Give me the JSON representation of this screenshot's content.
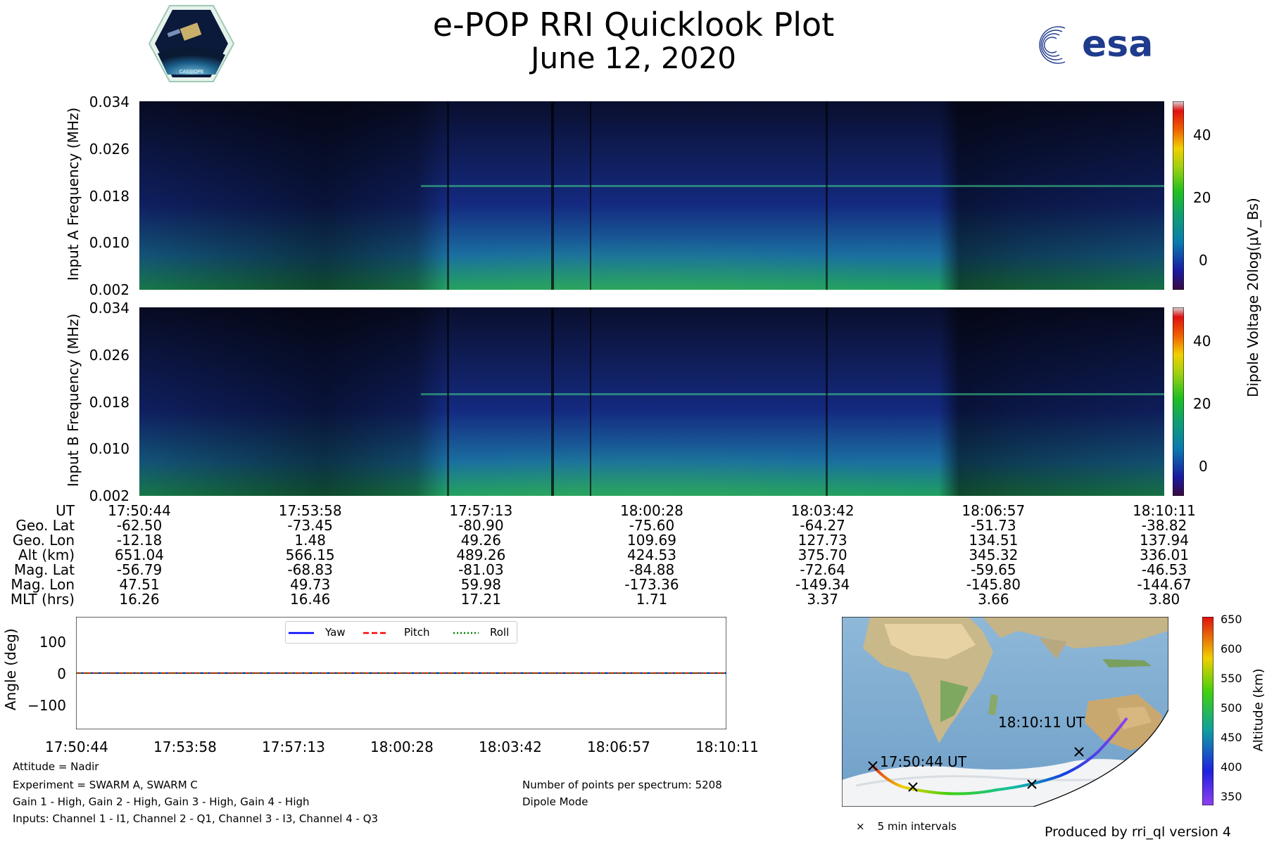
{
  "header": {
    "title": "e-POP RRI Quicklook Plot",
    "date": "June 12, 2020",
    "logo_left_text": "CASSIOPE",
    "logo_right_text": "esa"
  },
  "chart_data": [
    {
      "type": "heatmap",
      "name": "Input A spectrogram",
      "ylabel": "Input A Frequency (MHz)",
      "yticks": [
        "0.002",
        "0.010",
        "0.018",
        "0.026",
        "0.034"
      ],
      "ylim": [
        0.002,
        0.034
      ]
    },
    {
      "type": "heatmap",
      "name": "Input B spectrogram",
      "ylabel": "Input B Frequency (MHz)",
      "yticks": [
        "0.002",
        "0.010",
        "0.018",
        "0.026",
        "0.034"
      ],
      "ylim": [
        0.002,
        0.034
      ]
    },
    {
      "type": "line",
      "name": "Attitude",
      "ylabel": "Angle (deg)",
      "yticks": [
        "100",
        "0",
        "−100"
      ],
      "ylim": [
        -180,
        180
      ],
      "xticks": [
        "17:50:44",
        "17:53:58",
        "17:57:13",
        "18:00:28",
        "18:03:42",
        "18:06:57",
        "18:10:11"
      ],
      "series": [
        {
          "name": "Yaw",
          "color": "#0000ff",
          "style": "solid",
          "values": [
            0,
            0,
            0,
            0,
            0,
            0,
            0
          ]
        },
        {
          "name": "Pitch",
          "color": "#ff0000",
          "style": "dashed",
          "values": [
            0,
            0,
            0,
            0,
            0,
            0,
            0
          ]
        },
        {
          "name": "Roll",
          "color": "#008000",
          "style": "dotted",
          "values": [
            0,
            0,
            0,
            0,
            0,
            0,
            0
          ]
        }
      ]
    }
  ],
  "colorbar": {
    "label": "Dipole Voltage 20log(μV_Bs)",
    "ticks": [
      "40",
      "20",
      "0"
    ],
    "range": [
      -10,
      50
    ]
  },
  "ephemeris": {
    "labels": [
      "UT",
      "Geo. Lat",
      "Geo. Lon",
      "Alt (km)",
      "Mag. Lat",
      "Mag. Lon",
      "MLT (hrs)"
    ],
    "columns": [
      [
        "17:50:44",
        "-62.50",
        "-12.18",
        "651.04",
        "-56.79",
        "47.51",
        "16.26"
      ],
      [
        "17:53:58",
        "-73.45",
        "1.48",
        "566.15",
        "-68.83",
        "49.73",
        "16.46"
      ],
      [
        "17:57:13",
        "-80.90",
        "49.26",
        "489.26",
        "-81.03",
        "59.98",
        "17.21"
      ],
      [
        "18:00:28",
        "-75.60",
        "109.69",
        "424.53",
        "-84.88",
        "-173.36",
        "1.71"
      ],
      [
        "18:03:42",
        "-64.27",
        "127.73",
        "375.70",
        "-72.64",
        "-149.34",
        "3.37"
      ],
      [
        "18:06:57",
        "-51.73",
        "134.51",
        "345.32",
        "-59.65",
        "-145.80",
        "3.66"
      ],
      [
        "18:10:11",
        "-38.82",
        "137.94",
        "336.01",
        "-46.53",
        "-144.67",
        "3.80"
      ]
    ]
  },
  "info_left": [
    "Attitude = Nadir",
    "Experiment = SWARM A, SWARM C",
    "Gain 1 - High, Gain 2 - High, Gain 3 - High, Gain 4 - High",
    "Inputs: Channel 1 - I1, Channel 2 - Q1, Channel 3 - I3, Channel 4 - Q3"
  ],
  "info_mid": [
    "Number of points per spectrum: 5208",
    "Dipole Mode"
  ],
  "map": {
    "start_label": "17:50:44 UT",
    "end_label": "18:10:11 UT",
    "marker_legend": "5 min intervals",
    "colorbar_label": "Altitude (km)",
    "colorbar_ticks": [
      "650",
      "600",
      "550",
      "500",
      "450",
      "400",
      "350"
    ]
  },
  "footer": "Produced by rri_ql version 4",
  "colors": {
    "yaw": "#0000ff",
    "pitch": "#ff0000",
    "roll": "#008000"
  }
}
